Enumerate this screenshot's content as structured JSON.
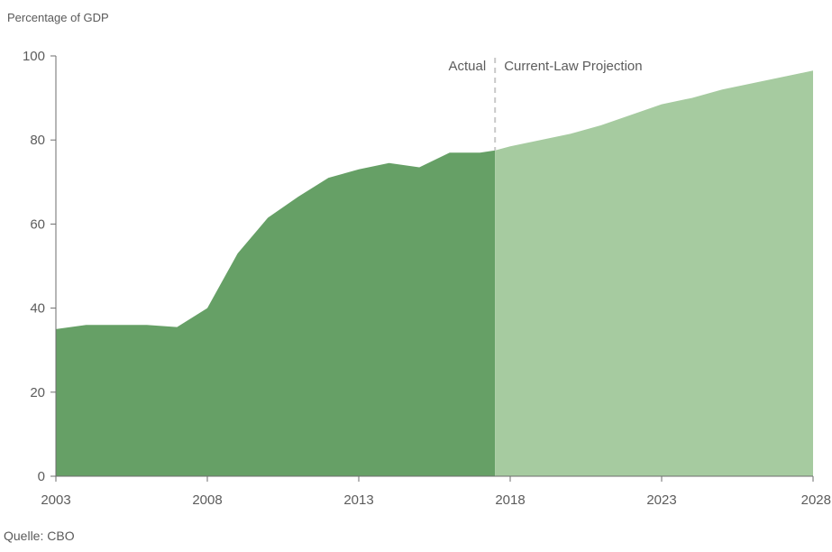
{
  "ylabel": "Percentage of GDP",
  "source": "Quelle: CBO",
  "chart_data": {
    "type": "area",
    "ylabel": "Percentage of GDP",
    "ylim": [
      0,
      100
    ],
    "xlim": [
      2003,
      2028
    ],
    "yticks": [
      0,
      20,
      40,
      60,
      80,
      100
    ],
    "xticks": [
      2003,
      2008,
      2013,
      2018,
      2023,
      2028
    ],
    "divider_x": 2017.5,
    "annotations": {
      "left": "Actual",
      "right": "Current-Law Projection"
    },
    "colors": {
      "actual": "#66a066",
      "projection": "#a6cba0",
      "divider": "#c8c8c8"
    },
    "series": [
      {
        "name": "Actual",
        "x": [
          2003,
          2004,
          2005,
          2006,
          2007,
          2008,
          2009,
          2010,
          2011,
          2012,
          2013,
          2014,
          2015,
          2016,
          2017,
          2017.5
        ],
        "values": [
          35,
          36,
          36,
          36,
          35.5,
          40,
          53,
          61.5,
          66.5,
          71,
          73,
          74.5,
          73.5,
          77,
          77,
          77.5
        ]
      },
      {
        "name": "Current-Law Projection",
        "x": [
          2017.5,
          2018,
          2019,
          2020,
          2021,
          2022,
          2023,
          2024,
          2025,
          2026,
          2027,
          2028
        ],
        "values": [
          77.5,
          78.5,
          80,
          81.5,
          83.5,
          86,
          88.5,
          90,
          92,
          93.5,
          95,
          96.5
        ]
      }
    ]
  }
}
